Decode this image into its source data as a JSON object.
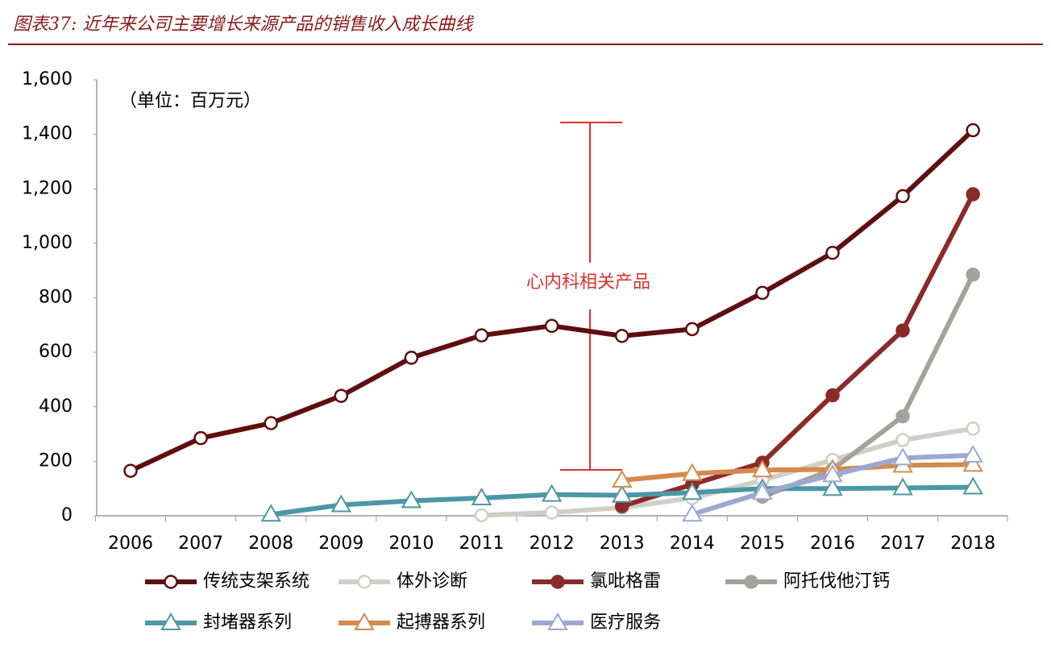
{
  "chart_data": {
    "type": "line",
    "title": "图表37: 近年来公司主要增长来源产品的销售收入成长曲线",
    "unit_note": "（单位：百万元）",
    "annotation": "心内科相关产品",
    "categories": [
      "2006",
      "2007",
      "2008",
      "2009",
      "2010",
      "2011",
      "2012",
      "2013",
      "2014",
      "2015",
      "2016",
      "2017",
      "2018"
    ],
    "ylim": [
      0,
      1600
    ],
    "yticks": [
      0,
      200,
      400,
      600,
      800,
      {
        "value": 1000,
        "label": "1,000"
      },
      {
        "value": 1200,
        "label": "1,200"
      },
      {
        "value": 1400,
        "label": "1,400"
      },
      {
        "value": 1600,
        "label": "1,600"
      }
    ],
    "series": [
      {
        "name": "传统支架系统",
        "color": "#5e0e0e",
        "marker": "circle",
        "marker_filled": false,
        "values": [
          165,
          285,
          340,
          440,
          580,
          662,
          697,
          660,
          685,
          818,
          965,
          1173,
          1415
        ]
      },
      {
        "name": "体外诊断",
        "color": "#cfcfc6",
        "marker": "circle",
        "marker_filled": false,
        "values": [
          null,
          null,
          null,
          null,
          null,
          2,
          12,
          30,
          65,
          130,
          205,
          278,
          320
        ]
      },
      {
        "name": "氯吡格雷",
        "color": "#8c2a2a",
        "marker": "circle",
        "marker_filled": true,
        "values": [
          null,
          null,
          null,
          null,
          null,
          null,
          null,
          35,
          115,
          195,
          442,
          680,
          1180
        ]
      },
      {
        "name": "阿托伐他汀钙",
        "color": "#a3a39b",
        "marker": "circle",
        "marker_filled": true,
        "values": [
          null,
          null,
          null,
          null,
          null,
          null,
          null,
          null,
          null,
          70,
          170,
          365,
          885
        ]
      },
      {
        "name": "封堵器系列",
        "color": "#4b97a6",
        "marker": "triangle",
        "marker_filled": false,
        "values": [
          null,
          null,
          5,
          40,
          55,
          65,
          78,
          75,
          85,
          100,
          100,
          102,
          105
        ]
      },
      {
        "name": "起搏器系列",
        "color": "#d48a4c",
        "marker": "triangle",
        "marker_filled": false,
        "values": [
          null,
          null,
          null,
          null,
          null,
          null,
          null,
          130,
          155,
          168,
          170,
          185,
          188
        ]
      },
      {
        "name": "医疗服务",
        "color": "#9ba8d2",
        "marker": "triangle",
        "marker_filled": false,
        "values": [
          null,
          null,
          null,
          null,
          null,
          null,
          null,
          null,
          5,
          85,
          150,
          212,
          222
        ]
      }
    ]
  }
}
